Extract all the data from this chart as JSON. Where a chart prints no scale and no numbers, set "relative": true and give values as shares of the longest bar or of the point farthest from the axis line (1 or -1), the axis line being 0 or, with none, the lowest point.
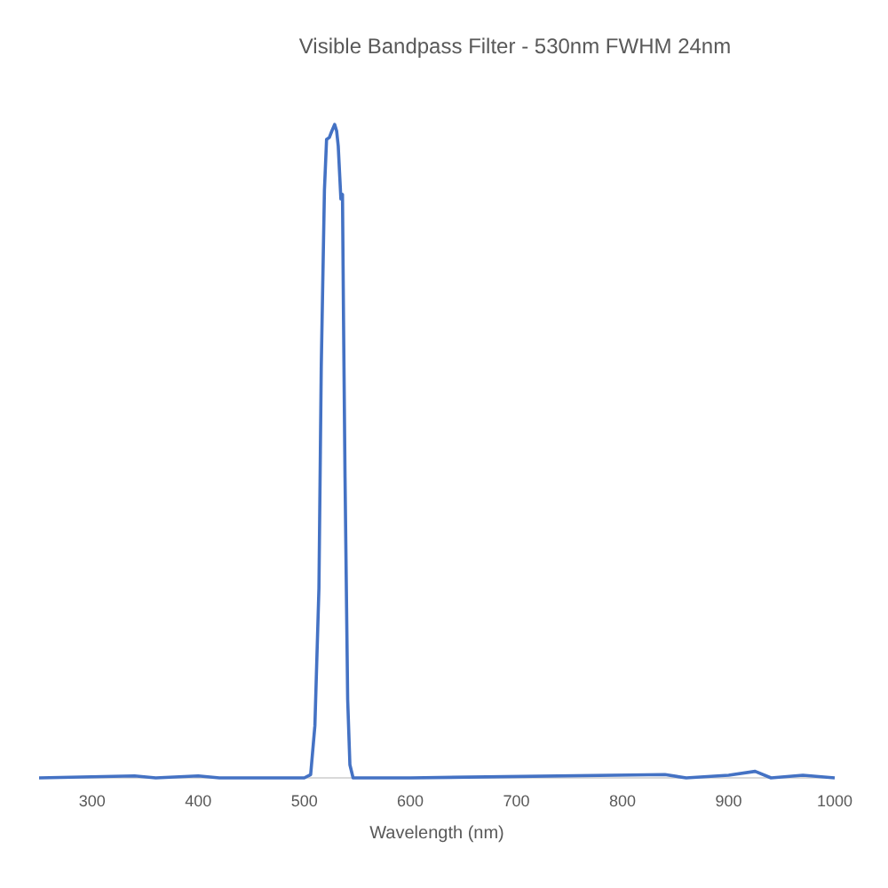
{
  "chart_data": {
    "type": "line",
    "title": "Visible Bandpass Filter - 530nm FWHM 24nm",
    "xlabel": "Wavelength (nm)",
    "relative": true,
    "marker": "none",
    "line_style": "solid",
    "tick_labels": "x",
    "xlim": [
      250,
      1000
    ],
    "xticks": [
      300,
      400,
      500,
      600,
      700,
      800,
      900,
      1000
    ],
    "series": [
      {
        "color": "#4472c4",
        "x": [
          250,
          340,
          360,
          400,
          420,
          500,
          506,
          510,
          513.8,
          516,
          519,
          521,
          523.6,
          526,
          528.6,
          530.5,
          532,
          534.5,
          536,
          537,
          538.4,
          540.9,
          543,
          546,
          600,
          840,
          860,
          900,
          925,
          940,
          970,
          1000
        ],
        "values": [
          0,
          0.003,
          0,
          0.003,
          0,
          0,
          0.005,
          0.08,
          0.29,
          0.63,
          0.9,
          0.977,
          0.98,
          0.99,
          1.0,
          0.99,
          0.967,
          0.886,
          0.893,
          0.7,
          0.46,
          0.12,
          0.02,
          0,
          0,
          0.005,
          0,
          0.004,
          0.01,
          0,
          0.004,
          0
        ]
      }
    ]
  }
}
